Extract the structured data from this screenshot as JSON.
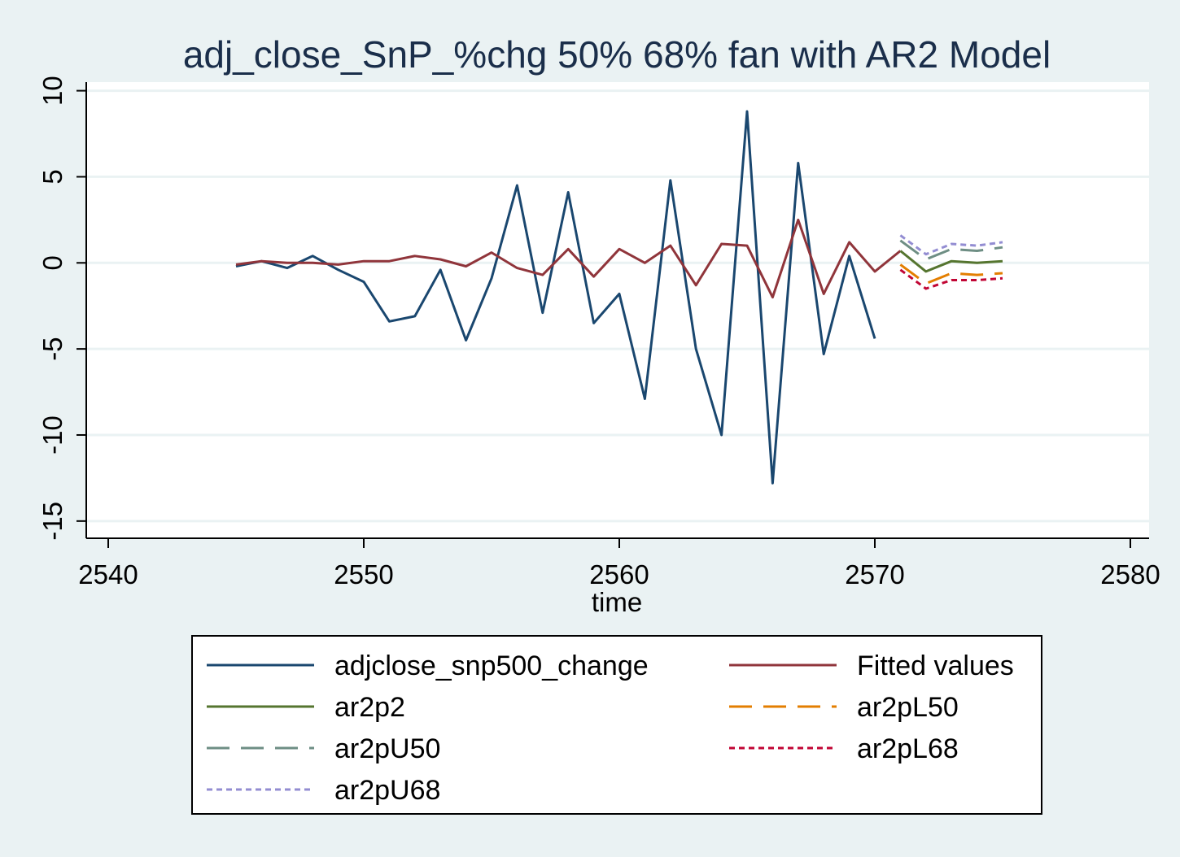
{
  "chart_data": {
    "type": "line",
    "title": "adj_close_SnP_%chg 50% 68% fan with AR2 Model",
    "xlabel": "time",
    "ylabel": "",
    "xlim": [
      2540,
      2580
    ],
    "ylim": [
      -16,
      10.5
    ],
    "xticks": [
      2540,
      2550,
      2560,
      2570,
      2580
    ],
    "yticks": [
      -15,
      -10,
      -5,
      0,
      5,
      10
    ],
    "grid": true,
    "legend_position": "bottom",
    "series": [
      {
        "name": "adjclose_snp500_change",
        "color": "#1a476f",
        "dash": "",
        "x": [
          2545,
          2546,
          2547,
          2548,
          2549,
          2550,
          2551,
          2552,
          2553,
          2554,
          2555,
          2556,
          2557,
          2558,
          2559,
          2560,
          2561,
          2562,
          2563,
          2564,
          2565,
          2566,
          2567,
          2568,
          2569,
          2570
        ],
        "y": [
          -0.2,
          0.1,
          -0.3,
          0.4,
          -0.4,
          -1.1,
          -3.4,
          -3.1,
          -0.4,
          -4.5,
          -0.9,
          4.5,
          -2.9,
          4.1,
          -3.5,
          -1.8,
          -7.9,
          4.8,
          -5.0,
          -10.0,
          8.8,
          -12.8,
          5.8,
          -5.3,
          0.4,
          -4.4
        ]
      },
      {
        "name": "Fitted values",
        "color": "#90353b",
        "dash": "",
        "x": [
          2545,
          2546,
          2547,
          2548,
          2549,
          2550,
          2551,
          2552,
          2553,
          2554,
          2555,
          2556,
          2557,
          2558,
          2559,
          2560,
          2561,
          2562,
          2563,
          2564,
          2565,
          2566,
          2567,
          2568,
          2569,
          2570,
          2571
        ],
        "y": [
          -0.1,
          0.1,
          0.0,
          0.0,
          -0.1,
          0.1,
          0.1,
          0.4,
          0.2,
          -0.2,
          0.6,
          -0.3,
          -0.7,
          0.8,
          -0.8,
          0.8,
          0.0,
          1.0,
          -1.3,
          1.1,
          1.0,
          -2.0,
          2.5,
          -1.8,
          1.2,
          -0.5,
          0.7
        ]
      },
      {
        "name": "ar2p2",
        "color": "#55752f",
        "dash": "",
        "x": [
          2571,
          2572,
          2573,
          2574,
          2575
        ],
        "y": [
          0.7,
          -0.5,
          0.1,
          0.0,
          0.1
        ]
      },
      {
        "name": "ar2pL50",
        "color": "#e37e00",
        "dash": "28,14",
        "x": [
          2571,
          2572,
          2573,
          2574,
          2575
        ],
        "y": [
          -0.1,
          -1.2,
          -0.6,
          -0.7,
          -0.6
        ]
      },
      {
        "name": "ar2pU50",
        "color": "#6e8e84",
        "dash": "28,14",
        "x": [
          2571,
          2572,
          2573,
          2574,
          2575
        ],
        "y": [
          1.3,
          0.2,
          0.8,
          0.7,
          0.9
        ]
      },
      {
        "name": "ar2pL68",
        "color": "#c10534",
        "dash": "7,5",
        "x": [
          2571,
          2572,
          2573,
          2574,
          2575
        ],
        "y": [
          -0.4,
          -1.5,
          -1.0,
          -1.0,
          -0.9
        ]
      },
      {
        "name": "ar2pU68",
        "color": "#938dd2",
        "dash": "7,5",
        "x": [
          2571,
          2572,
          2573,
          2574,
          2575
        ],
        "y": [
          1.6,
          0.5,
          1.1,
          1.0,
          1.2
        ]
      }
    ],
    "legend_order": [
      "adjclose_snp500_change",
      "Fitted values",
      "ar2p2",
      "ar2pL50",
      "ar2pU50",
      "ar2pL68",
      "ar2pU68"
    ]
  }
}
